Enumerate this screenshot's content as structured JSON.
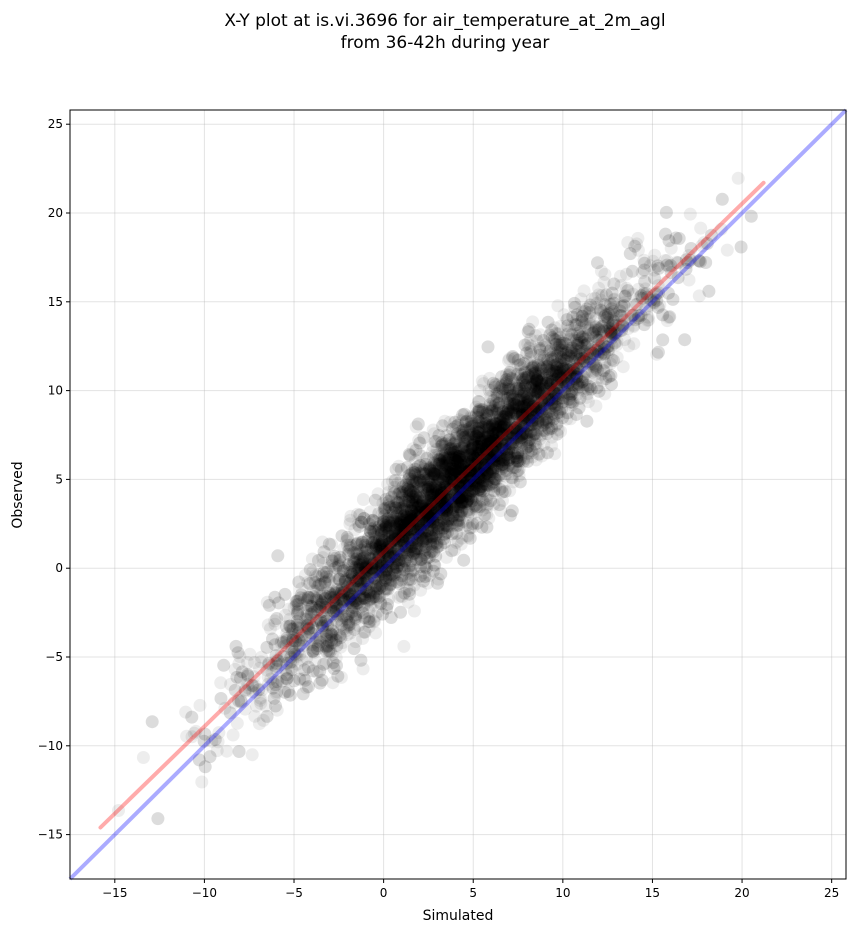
{
  "chart_data": {
    "type": "scatter",
    "title_line1": "X-Y plot at is.vi.3696 for air_temperature_at_2m_agl",
    "title_line2": "from 36-42h during year",
    "xlabel": "Simulated",
    "ylabel": "Observed",
    "xlim": [
      -17.5,
      25.8
    ],
    "ylim": [
      -17.5,
      25.8
    ],
    "xticks": [
      -15,
      -10,
      -5,
      0,
      5,
      10,
      15,
      20,
      25
    ],
    "yticks": [
      -15,
      -10,
      -5,
      0,
      5,
      10,
      15,
      20,
      25
    ],
    "xtick_labels": [
      "−15",
      "−10",
      "−5",
      "0",
      "5",
      "10",
      "15",
      "20",
      "25"
    ],
    "ytick_labels": [
      "−15",
      "−10",
      "−5",
      "0",
      "5",
      "10",
      "15",
      "20",
      "25"
    ],
    "grid": true,
    "point_color": "#000000",
    "point_alpha": 0.07,
    "points_description_counts": {
      "approx_total": 6000
    },
    "cloud": {
      "x_center": 4.0,
      "x_spread": 5.0,
      "slope": 1.0,
      "intercept": 0.9,
      "residual_sd": 1.6,
      "x_min": -16.0,
      "x_max": 21.3
    },
    "regression_line": {
      "x": [
        -15.8,
        21.2
      ],
      "y": [
        -14.6,
        21.7
      ],
      "color": "#ff0000"
    },
    "identity_line": {
      "x": [
        -17.5,
        25.8
      ],
      "y": [
        -17.5,
        25.8
      ],
      "color": "#0000ff"
    }
  }
}
